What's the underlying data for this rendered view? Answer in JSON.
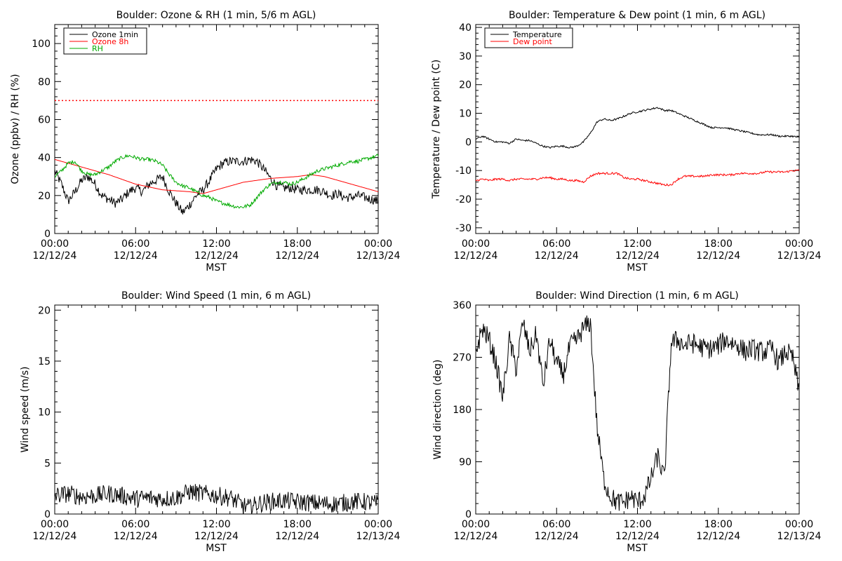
{
  "colors": {
    "black": "#000000",
    "red": "#ff0000",
    "green": "#00aa00"
  },
  "chart_data": [
    {
      "type": "line",
      "title": "Boulder: Ozone & RH (1 min, 5/6 m AGL)",
      "xlabel": "MST",
      "ylabel": "Ozone (ppbv) / RH (%)",
      "xlim": [
        0,
        24
      ],
      "ylim": [
        0,
        110
      ],
      "y_ticks": [
        0,
        20,
        40,
        60,
        80,
        100
      ],
      "x_tick_labels": [
        {
          "hour": 0,
          "time": "00:00",
          "date": "12/12/24"
        },
        {
          "hour": 6,
          "time": "06:00",
          "date": "12/12/24"
        },
        {
          "hour": 12,
          "time": "12:00",
          "date": "12/12/24"
        },
        {
          "hour": 18,
          "time": "18:00",
          "date": "12/12/24"
        },
        {
          "hour": 24,
          "time": "00:00",
          "date": "12/13/24"
        }
      ],
      "legend": "top-left",
      "reference_line": {
        "y": 70,
        "color": "#ff0000",
        "style": "dotted"
      },
      "series": [
        {
          "name": "Ozone 1min",
          "color": "#000000",
          "noise": 2.5,
          "x": [
            0,
            0.5,
            1,
            1.5,
            2,
            2.5,
            3,
            3.5,
            4,
            4.5,
            5,
            5.5,
            6,
            6.5,
            7,
            7.5,
            8,
            8.5,
            9,
            9.5,
            10,
            10.5,
            11,
            11.5,
            12,
            12.5,
            13,
            13.5,
            14,
            14.5,
            15,
            15.5,
            16,
            16.5,
            17,
            17.5,
            18,
            18.5,
            19,
            19.5,
            20,
            20.5,
            21,
            21.5,
            22,
            22.5,
            23,
            23.5,
            24
          ],
          "y": [
            33,
            26,
            17,
            22,
            28,
            30,
            26,
            20,
            18,
            16,
            18,
            22,
            24,
            22,
            26,
            28,
            30,
            22,
            16,
            11,
            15,
            20,
            23,
            28,
            34,
            37,
            38,
            38,
            38,
            39,
            38,
            34,
            29,
            25,
            24,
            24,
            23,
            23,
            23,
            23,
            22,
            20,
            21,
            19,
            19,
            20,
            19,
            18,
            17
          ]
        },
        {
          "name": "Ozone 8h",
          "color": "#ff0000",
          "noise": 0,
          "x": [
            0,
            2,
            4,
            6,
            8,
            10,
            11,
            12,
            14,
            16,
            18,
            19,
            20,
            22,
            24
          ],
          "y": [
            39,
            35,
            31,
            26,
            23,
            22,
            21,
            23,
            27,
            29,
            30,
            31,
            30,
            26,
            22
          ]
        },
        {
          "name": "RH",
          "color": "#00aa00",
          "noise": 1,
          "x": [
            0,
            0.5,
            1,
            1.5,
            2,
            2.5,
            3,
            3.5,
            4,
            4.5,
            5,
            5.5,
            6,
            6.5,
            7,
            7.5,
            8,
            8.5,
            9,
            9.5,
            10,
            10.5,
            11,
            11.5,
            12,
            12.5,
            13,
            13.5,
            14,
            14.5,
            15,
            15.5,
            16,
            16.5,
            17,
            17.5,
            18,
            18.5,
            19,
            19.5,
            20,
            20.5,
            21,
            21.5,
            22,
            22.5,
            23,
            23.5,
            24
          ],
          "y": [
            30,
            33,
            37,
            38,
            33,
            31,
            31,
            33,
            35,
            38,
            40,
            41,
            40,
            39,
            39,
            38,
            36,
            31,
            27,
            25,
            24,
            22,
            20,
            19,
            17,
            16,
            15,
            14,
            14,
            15,
            19,
            23,
            26,
            27,
            27,
            26,
            27,
            29,
            31,
            33,
            34,
            35,
            36,
            37,
            38,
            38,
            39,
            40,
            41
          ]
        }
      ]
    },
    {
      "type": "line",
      "title": "Boulder: Temperature & Dew point (1 min, 6 m AGL)",
      "xlabel": "MST",
      "ylabel": "Temperature / Dew point (C)",
      "xlim": [
        0,
        24
      ],
      "ylim": [
        -32,
        41
      ],
      "y_ticks": [
        -30,
        -20,
        -10,
        0,
        10,
        20,
        30,
        40
      ],
      "x_tick_labels": [
        {
          "hour": 0,
          "time": "00:00",
          "date": "12/12/24"
        },
        {
          "hour": 6,
          "time": "06:00",
          "date": "12/12/24"
        },
        {
          "hour": 12,
          "time": "12:00",
          "date": "12/12/24"
        },
        {
          "hour": 18,
          "time": "18:00",
          "date": "12/12/24"
        },
        {
          "hour": 24,
          "time": "00:00",
          "date": "12/13/24"
        }
      ],
      "legend": "top-left",
      "series": [
        {
          "name": "Temperature",
          "color": "#000000",
          "noise": 0.3,
          "x": [
            0,
            0.5,
            1,
            1.5,
            2,
            2.5,
            3,
            3.5,
            4,
            4.5,
            5,
            5.5,
            6,
            6.5,
            7,
            7.5,
            8,
            8.5,
            9,
            9.5,
            10,
            10.5,
            11,
            11.5,
            12,
            12.5,
            13,
            13.5,
            14,
            14.5,
            15,
            15.5,
            16,
            16.5,
            17,
            17.5,
            18,
            18.5,
            19,
            19.5,
            20,
            20.5,
            21,
            21.5,
            22,
            22.5,
            23,
            23.5,
            24
          ],
          "y": [
            1,
            2,
            1,
            0,
            0,
            -0.5,
            1,
            0.5,
            0.5,
            -0.5,
            -1.5,
            -2,
            -1.5,
            -1.5,
            -2,
            -1.5,
            0,
            3,
            7,
            8,
            7.5,
            8,
            9,
            10,
            10.5,
            11,
            11.5,
            12,
            11,
            11,
            10,
            9,
            8,
            7,
            6,
            5,
            5,
            5,
            4.5,
            4,
            3.5,
            3,
            2.5,
            2.5,
            2.5,
            2,
            2,
            2,
            1.5
          ]
        },
        {
          "name": "Dew point",
          "color": "#ff0000",
          "noise": 0.35,
          "x": [
            0,
            0.5,
            1,
            1.5,
            2,
            2.5,
            3,
            3.5,
            4,
            4.5,
            5,
            5.5,
            6,
            6.5,
            7,
            7.5,
            8,
            8.5,
            9,
            9.5,
            10,
            10.5,
            11,
            11.5,
            12,
            12.5,
            13,
            13.5,
            14,
            14.5,
            15,
            15.5,
            16,
            16.5,
            17,
            17.5,
            18,
            18.5,
            19,
            19.5,
            20,
            20.5,
            21,
            21.5,
            22,
            22.5,
            23,
            23.5,
            24
          ],
          "y": [
            -13.5,
            -13,
            -13.5,
            -13,
            -13,
            -13.5,
            -13,
            -13,
            -13,
            -13,
            -12.5,
            -12.5,
            -13,
            -13,
            -13.5,
            -13.5,
            -14,
            -12,
            -11,
            -11,
            -11,
            -11,
            -12.5,
            -13,
            -13,
            -13.5,
            -14,
            -14.5,
            -15,
            -15,
            -13,
            -12,
            -12,
            -12,
            -12,
            -11.5,
            -11.5,
            -11.5,
            -11.5,
            -11,
            -11,
            -11,
            -11,
            -10.5,
            -10.5,
            -10.5,
            -10.5,
            -10,
            -10
          ]
        }
      ]
    },
    {
      "type": "line",
      "title": "Boulder: Wind Speed (1 min, 6 m AGL)",
      "xlabel": "MST",
      "ylabel": "Wind speed (m/s)",
      "xlim": [
        0,
        24
      ],
      "ylim": [
        0,
        20.5
      ],
      "y_ticks": [
        0,
        5,
        10,
        15,
        20
      ],
      "x_tick_labels": [
        {
          "hour": 0,
          "time": "00:00",
          "date": "12/12/24"
        },
        {
          "hour": 6,
          "time": "06:00",
          "date": "12/12/24"
        },
        {
          "hour": 12,
          "time": "12:00",
          "date": "12/12/24"
        },
        {
          "hour": 18,
          "time": "18:00",
          "date": "12/12/24"
        },
        {
          "hour": 24,
          "time": "00:00",
          "date": "12/13/24"
        }
      ],
      "series": [
        {
          "name": "",
          "color": "#000000",
          "noise": 0.9,
          "floor": 0,
          "x": [
            0,
            1,
            2,
            3,
            4,
            5,
            6,
            7,
            8,
            9,
            10,
            11,
            12,
            13,
            14,
            14.5,
            15,
            16,
            17,
            18,
            19,
            20,
            21,
            22,
            23,
            24
          ],
          "y": [
            1.8,
            2.0,
            1.7,
            1.8,
            2.0,
            1.8,
            1.5,
            1.6,
            1.5,
            1.6,
            2.2,
            2.0,
            1.8,
            1.6,
            0.8,
            0.6,
            1.0,
            1.2,
            1.3,
            1.2,
            1.1,
            1.0,
            1.0,
            1.2,
            1.2,
            1.0
          ]
        }
      ]
    },
    {
      "type": "line",
      "title": "Boulder: Wind Direction (1 min, 6 m AGL)",
      "xlabel": "MST",
      "ylabel": "Wind direction (deg)",
      "xlim": [
        0,
        24
      ],
      "ylim": [
        0,
        360
      ],
      "y_ticks": [
        0,
        90,
        180,
        270,
        360
      ],
      "x_tick_labels": [
        {
          "hour": 0,
          "time": "00:00",
          "date": "12/12/24"
        },
        {
          "hour": 6,
          "time": "06:00",
          "date": "12/12/24"
        },
        {
          "hour": 12,
          "time": "12:00",
          "date": "12/12/24"
        },
        {
          "hour": 18,
          "time": "18:00",
          "date": "12/12/24"
        },
        {
          "hour": 24,
          "time": "00:00",
          "date": "12/13/24"
        }
      ],
      "series": [
        {
          "name": "",
          "color": "#000000",
          "noise": 18,
          "floor": 0,
          "ceiling": 360,
          "x": [
            0,
            0.5,
            1,
            1.5,
            2,
            2.5,
            3,
            3.5,
            4,
            4.5,
            5,
            5.5,
            6,
            6.5,
            7,
            7.5,
            8,
            8.5,
            9,
            9.5,
            10,
            10.5,
            11,
            11.5,
            12,
            12.5,
            13,
            13.5,
            14,
            14.5,
            15,
            15.5,
            16,
            16.5,
            17,
            17.5,
            18,
            18.5,
            19,
            19.5,
            20,
            20.5,
            21,
            21.5,
            22,
            22.5,
            23,
            23.5,
            24
          ],
          "y": [
            280,
            320,
            300,
            260,
            200,
            300,
            250,
            330,
            280,
            310,
            220,
            300,
            260,
            240,
            290,
            300,
            320,
            330,
            150,
            60,
            30,
            20,
            20,
            30,
            20,
            30,
            60,
            100,
            60,
            295,
            300,
            290,
            295,
            290,
            285,
            285,
            290,
            300,
            295,
            290,
            280,
            285,
            280,
            280,
            285,
            260,
            280,
            270,
            210
          ]
        }
      ]
    }
  ]
}
